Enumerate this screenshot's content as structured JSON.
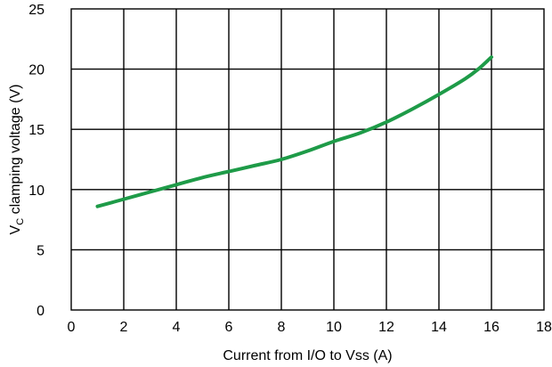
{
  "chart_data": {
    "type": "line",
    "title": "",
    "xlabel": "Current from I/O to Vss (A)",
    "ylabel": {
      "prefix": "V",
      "subscript": "C",
      "suffix": " clamping voltage (V)"
    },
    "xlim": [
      0,
      18
    ],
    "ylim": [
      0,
      25
    ],
    "xticks": [
      "0",
      "2",
      "4",
      "6",
      "8",
      "10",
      "12",
      "14",
      "16",
      "18"
    ],
    "yticks": [
      "0",
      "5",
      "10",
      "15",
      "20",
      "25"
    ],
    "grid": true,
    "legend": "none",
    "series": [
      {
        "color": "#1e9b48",
        "x": [
          1,
          2,
          3,
          4,
          5,
          6,
          7,
          8,
          9,
          10,
          11,
          12,
          13,
          14,
          15,
          15.5,
          16
        ],
        "y": [
          8.6,
          9.2,
          9.8,
          10.4,
          11.0,
          11.5,
          12.0,
          12.5,
          13.2,
          14.0,
          14.7,
          15.6,
          16.7,
          17.9,
          19.2,
          20.0,
          21.0
        ]
      }
    ]
  }
}
